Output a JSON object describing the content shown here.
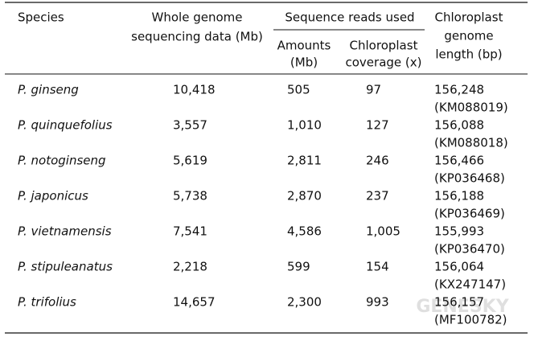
{
  "table": {
    "header": {
      "species": "Species",
      "whole_genome": [
        "Whole genome",
        "sequencing data (Mb)"
      ],
      "reads_group": "Sequence reads used",
      "amounts": [
        "Amounts",
        "(Mb)"
      ],
      "coverage": [
        "Chloroplast",
        "coverage (x)"
      ],
      "length": [
        "Chloroplast",
        "genome",
        "length (bp)"
      ]
    },
    "rows": [
      [
        "P. ginseng",
        "10,418",
        "505",
        "97",
        "156,248",
        "(KM088019)"
      ],
      [
        "P. quinquefolius",
        "3,557",
        "1,010",
        "127",
        "156,088",
        "(KM088018)"
      ],
      [
        "P. notoginseng",
        "5,619",
        "2,811",
        "246",
        "156,466",
        "(KP036468)"
      ],
      [
        "P. japonicus",
        "5,738",
        "2,870",
        "237",
        "156,188",
        "(KP036469)"
      ],
      [
        "P. vietnamensis",
        "7,541",
        "4,586",
        "1,005",
        "155,993",
        "(KP036470)"
      ],
      [
        "P. stipuleanatus",
        "2,218",
        "599",
        "154",
        "156,064",
        "(KX247147)"
      ],
      [
        "P. trifolius",
        "14,657",
        "2,300",
        "993",
        "156,157",
        "(MF100782)"
      ]
    ],
    "watermark": "GENESKY"
  }
}
